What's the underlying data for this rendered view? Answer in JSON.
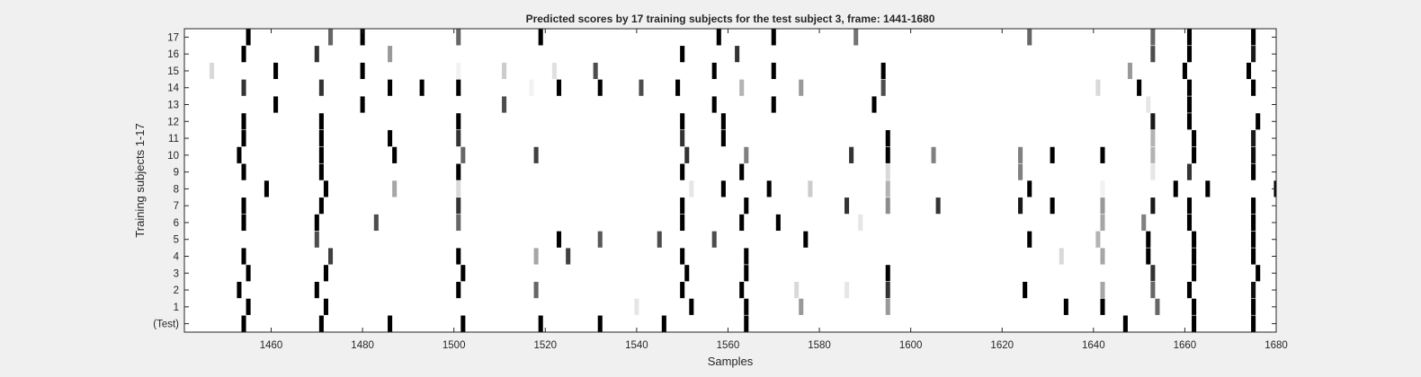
{
  "chart_data": {
    "type": "heatmap",
    "title": "Predicted scores by 17 training subjects for the test subject 3, frame: 1441-1680",
    "xlabel": "Samples",
    "ylabel": "Training subjects 1-17",
    "xlim": [
      1441,
      1680
    ],
    "x_ticks": [
      1460,
      1480,
      1500,
      1520,
      1540,
      1560,
      1580,
      1600,
      1620,
      1640,
      1660,
      1680
    ],
    "rows": [
      "17",
      "16",
      "15",
      "14",
      "13",
      "12",
      "11",
      "10",
      "9",
      "8",
      "7",
      "6",
      "5",
      "4",
      "3",
      "2",
      "1",
      "(Test)"
    ],
    "colormap": "gray (white = 0, black = 1)",
    "grid": false,
    "cells": [
      {
        "row": "17",
        "marks": [
          [
            1455,
            1
          ],
          [
            1473,
            0.6
          ],
          [
            1480,
            1
          ],
          [
            1501,
            0.6
          ],
          [
            1519,
            1
          ],
          [
            1558,
            1
          ],
          [
            1570,
            1
          ],
          [
            1588,
            0.55
          ],
          [
            1626,
            0.6
          ],
          [
            1653,
            0.6
          ],
          [
            1661,
            1
          ],
          [
            1675,
            1
          ]
        ]
      },
      {
        "row": "16",
        "marks": [
          [
            1454,
            1
          ],
          [
            1470,
            0.8
          ],
          [
            1486,
            0.4
          ],
          [
            1550,
            1
          ],
          [
            1562,
            0.8
          ],
          [
            1653,
            0.7
          ],
          [
            1661,
            1
          ],
          [
            1675,
            0.9
          ]
        ]
      },
      {
        "row": "15",
        "marks": [
          [
            1447,
            0.15
          ],
          [
            1461,
            1
          ],
          [
            1480,
            1
          ],
          [
            1501,
            0.05
          ],
          [
            1511,
            0.2
          ],
          [
            1522,
            0.12
          ],
          [
            1531,
            0.7
          ],
          [
            1557,
            1
          ],
          [
            1570,
            1
          ],
          [
            1594,
            1
          ],
          [
            1648,
            0.4
          ],
          [
            1660,
            1
          ],
          [
            1674,
            1
          ]
        ]
      },
      {
        "row": "14",
        "marks": [
          [
            1454,
            0.8
          ],
          [
            1471,
            0.8
          ],
          [
            1486,
            1
          ],
          [
            1493,
            1
          ],
          [
            1501,
            1
          ],
          [
            1517,
            0.05
          ],
          [
            1523,
            1
          ],
          [
            1532,
            1
          ],
          [
            1541,
            0.7
          ],
          [
            1549,
            1
          ],
          [
            1563,
            0.3
          ],
          [
            1576,
            0.4
          ],
          [
            1594,
            0.7
          ],
          [
            1641,
            0.15
          ],
          [
            1650,
            1
          ],
          [
            1661,
            1
          ],
          [
            1675,
            1
          ]
        ]
      },
      {
        "row": "13",
        "marks": [
          [
            1461,
            1
          ],
          [
            1480,
            1
          ],
          [
            1511,
            0.7
          ],
          [
            1557,
            1
          ],
          [
            1570,
            1
          ],
          [
            1592,
            1
          ],
          [
            1652,
            0.1
          ],
          [
            1661,
            1
          ]
        ]
      },
      {
        "row": "12",
        "marks": [
          [
            1454,
            1
          ],
          [
            1471,
            1
          ],
          [
            1501,
            1
          ],
          [
            1550,
            1
          ],
          [
            1559,
            1
          ],
          [
            1653,
            0.9
          ],
          [
            1661,
            1
          ],
          [
            1676,
            1
          ]
        ]
      },
      {
        "row": "11",
        "marks": [
          [
            1454,
            1
          ],
          [
            1471,
            1
          ],
          [
            1486,
            1
          ],
          [
            1501,
            0.8
          ],
          [
            1550,
            0.8
          ],
          [
            1559,
            1
          ],
          [
            1595,
            1
          ],
          [
            1653,
            0.3
          ],
          [
            1662,
            1
          ],
          [
            1675,
            0.9
          ]
        ]
      },
      {
        "row": "10",
        "marks": [
          [
            1453,
            1
          ],
          [
            1471,
            1
          ],
          [
            1487,
            1
          ],
          [
            1502,
            0.6
          ],
          [
            1518,
            0.75
          ],
          [
            1551,
            0.8
          ],
          [
            1564,
            0.5
          ],
          [
            1587,
            0.8
          ],
          [
            1595,
            1
          ],
          [
            1605,
            0.5
          ],
          [
            1624,
            0.5
          ],
          [
            1631,
            1
          ],
          [
            1642,
            1
          ],
          [
            1653,
            0.3
          ],
          [
            1662,
            1
          ],
          [
            1675,
            0.95
          ]
        ]
      },
      {
        "row": "9",
        "marks": [
          [
            1454,
            1
          ],
          [
            1471,
            1
          ],
          [
            1501,
            1
          ],
          [
            1550,
            1
          ],
          [
            1563,
            1
          ],
          [
            1595,
            0.15
          ],
          [
            1624,
            0.5
          ],
          [
            1653,
            0.1
          ],
          [
            1661,
            0.8
          ],
          [
            1675,
            1
          ]
        ]
      },
      {
        "row": "8",
        "marks": [
          [
            1459,
            1
          ],
          [
            1472,
            1
          ],
          [
            1487,
            0.35
          ],
          [
            1501,
            0.15
          ],
          [
            1552,
            0.1
          ],
          [
            1559,
            1
          ],
          [
            1569,
            1
          ],
          [
            1578,
            0.2
          ],
          [
            1595,
            0.3
          ],
          [
            1626,
            1
          ],
          [
            1642,
            0.05
          ],
          [
            1658,
            1
          ],
          [
            1665,
            1
          ],
          [
            1680,
            1
          ]
        ]
      },
      {
        "row": "7",
        "marks": [
          [
            1454,
            1
          ],
          [
            1471,
            1
          ],
          [
            1501,
            0.8
          ],
          [
            1550,
            1
          ],
          [
            1564,
            1
          ],
          [
            1586,
            0.8
          ],
          [
            1595,
            0.45
          ],
          [
            1606,
            0.8
          ],
          [
            1624,
            0.9
          ],
          [
            1631,
            1
          ],
          [
            1642,
            0.4
          ],
          [
            1653,
            0.9
          ],
          [
            1661,
            1
          ],
          [
            1675,
            1
          ]
        ]
      },
      {
        "row": "6",
        "marks": [
          [
            1454,
            1
          ],
          [
            1470,
            1
          ],
          [
            1483,
            0.7
          ],
          [
            1501,
            0.6
          ],
          [
            1550,
            1
          ],
          [
            1563,
            1
          ],
          [
            1571,
            1
          ],
          [
            1589,
            0.1
          ],
          [
            1642,
            0.35
          ],
          [
            1651,
            0.5
          ],
          [
            1661,
            1
          ],
          [
            1675,
            1
          ]
        ]
      },
      {
        "row": "5",
        "marks": [
          [
            1470,
            0.7
          ],
          [
            1523,
            1
          ],
          [
            1532,
            0.65
          ],
          [
            1545,
            0.7
          ],
          [
            1557,
            0.7
          ],
          [
            1577,
            1
          ],
          [
            1626,
            1
          ],
          [
            1641,
            0.3
          ],
          [
            1652,
            1
          ],
          [
            1662,
            1
          ],
          [
            1675,
            1
          ]
        ]
      },
      {
        "row": "4",
        "marks": [
          [
            1454,
            1
          ],
          [
            1473,
            0.75
          ],
          [
            1501,
            1
          ],
          [
            1518,
            0.35
          ],
          [
            1525,
            0.75
          ],
          [
            1550,
            1
          ],
          [
            1564,
            1
          ],
          [
            1633,
            0.15
          ],
          [
            1642,
            0.35
          ],
          [
            1652,
            1
          ],
          [
            1662,
            1
          ],
          [
            1675,
            1
          ]
        ]
      },
      {
        "row": "3",
        "marks": [
          [
            1455,
            1
          ],
          [
            1472,
            1
          ],
          [
            1502,
            1
          ],
          [
            1551,
            1
          ],
          [
            1564,
            1
          ],
          [
            1595,
            1
          ],
          [
            1653,
            0.8
          ],
          [
            1662,
            1
          ],
          [
            1676,
            1
          ]
        ]
      },
      {
        "row": "2",
        "marks": [
          [
            1453,
            1
          ],
          [
            1470,
            1
          ],
          [
            1501,
            1
          ],
          [
            1518,
            0.6
          ],
          [
            1550,
            1
          ],
          [
            1563,
            1
          ],
          [
            1575,
            0.15
          ],
          [
            1586,
            0.1
          ],
          [
            1595,
            0.8
          ],
          [
            1625,
            1
          ],
          [
            1642,
            0.35
          ],
          [
            1653,
            0.6
          ],
          [
            1661,
            1
          ],
          [
            1675,
            0.95
          ]
        ]
      },
      {
        "row": "1",
        "marks": [
          [
            1455,
            1
          ],
          [
            1472,
            1
          ],
          [
            1540,
            0.1
          ],
          [
            1552,
            1
          ],
          [
            1564,
            1
          ],
          [
            1576,
            0.4
          ],
          [
            1595,
            0.4
          ],
          [
            1634,
            1
          ],
          [
            1642,
            1
          ],
          [
            1654,
            0.6
          ],
          [
            1662,
            1
          ],
          [
            1675,
            1
          ]
        ]
      },
      {
        "row": "(Test)",
        "marks": [
          [
            1454,
            1
          ],
          [
            1471,
            1
          ],
          [
            1486,
            1
          ],
          [
            1502,
            1
          ],
          [
            1519,
            1
          ],
          [
            1532,
            1
          ],
          [
            1546,
            1
          ],
          [
            1564,
            1
          ],
          [
            1647,
            1
          ],
          [
            1662,
            1
          ],
          [
            1675,
            1
          ]
        ]
      }
    ]
  }
}
